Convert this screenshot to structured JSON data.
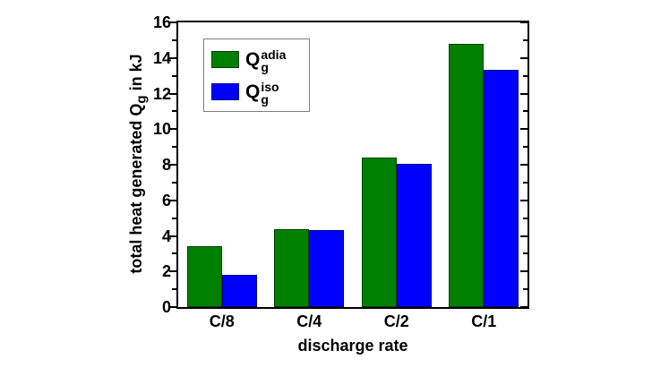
{
  "chart_data": {
    "type": "bar",
    "title": "",
    "xlabel": "discharge rate",
    "ylabel": "total heat generated Qg in kJ",
    "ylabel_parts": {
      "prefix": "total heat generated Q",
      "sub": "g",
      "suffix": " in kJ"
    },
    "categories": [
      "C/8",
      "C/4",
      "C/2",
      "C/1"
    ],
    "series": [
      {
        "id": "adia",
        "label": {
          "base": "Q",
          "sub": "g",
          "sup": "adia"
        },
        "color": "#008000",
        "border_color": "#004000",
        "values": [
          3.4,
          4.4,
          8.4,
          14.8
        ]
      },
      {
        "id": "iso",
        "label": {
          "base": "Q",
          "sub": "g",
          "sup": "iso"
        },
        "color": "#0000ff",
        "border_color": "#000080",
        "values": [
          1.8,
          4.35,
          8.05,
          13.35
        ]
      }
    ],
    "ylim": [
      0,
      16
    ],
    "y_major_ticks": [
      0,
      2,
      4,
      6,
      8,
      10,
      12,
      14,
      16
    ],
    "y_minor_ticks": [
      1,
      3,
      5,
      7,
      9,
      11,
      13,
      15
    ],
    "legend_position": "top-left",
    "grid": false,
    "axis_color": "#000000",
    "legend_border_color": "#7f7f7f"
  }
}
